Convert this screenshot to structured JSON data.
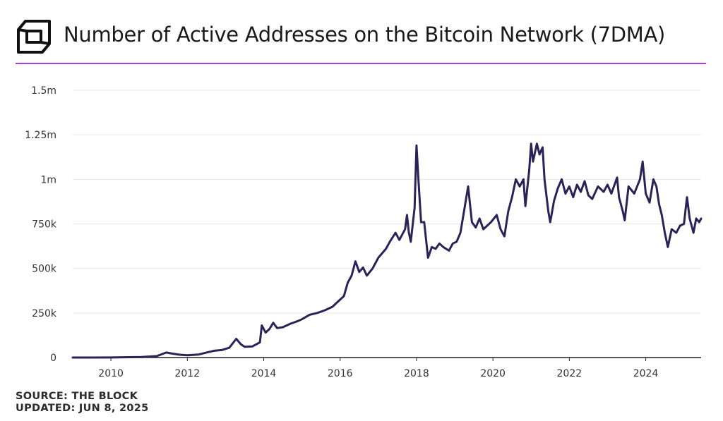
{
  "header": {
    "title": "Number of Active Addresses on the Bitcoin Network (7DMA)",
    "accent_color": "#b23cd6",
    "logo_icon": "the-block-cube-logo"
  },
  "footer": {
    "source": "SOURCE: THE BLOCK",
    "updated": "UPDATED: JUN 8, 2025"
  },
  "chart_data": {
    "type": "line",
    "title": "Number of Active Addresses on the Bitcoin Network (7DMA)",
    "xlabel": "",
    "ylabel": "",
    "ylim": [
      0,
      1500000
    ],
    "xlim": [
      2009.0,
      2025.45
    ],
    "grid": true,
    "line_color": "#2b2358",
    "y_ticks": [
      {
        "value": 0,
        "label": "0"
      },
      {
        "value": 250000,
        "label": "250k"
      },
      {
        "value": 500000,
        "label": "500k"
      },
      {
        "value": 750000,
        "label": "750k"
      },
      {
        "value": 1000000,
        "label": "1m"
      },
      {
        "value": 1250000,
        "label": "1.25m"
      },
      {
        "value": 1500000,
        "label": "1.5m"
      }
    ],
    "x_ticks": [
      {
        "value": 2010,
        "label": "2010"
      },
      {
        "value": 2012,
        "label": "2012"
      },
      {
        "value": 2014,
        "label": "2014"
      },
      {
        "value": 2016,
        "label": "2016"
      },
      {
        "value": 2018,
        "label": "2018"
      },
      {
        "value": 2020,
        "label": "2020"
      },
      {
        "value": 2022,
        "label": "2022"
      },
      {
        "value": 2024,
        "label": "2024"
      }
    ],
    "series": [
      {
        "name": "Active Addresses (7DMA)",
        "points": [
          [
            2009.0,
            0
          ],
          [
            2010.0,
            500
          ],
          [
            2010.8,
            3000
          ],
          [
            2011.2,
            8000
          ],
          [
            2011.45,
            28000
          ],
          [
            2011.6,
            22000
          ],
          [
            2011.8,
            16000
          ],
          [
            2012.0,
            13000
          ],
          [
            2012.3,
            17000
          ],
          [
            2012.5,
            28000
          ],
          [
            2012.7,
            38000
          ],
          [
            2012.9,
            42000
          ],
          [
            2013.1,
            55000
          ],
          [
            2013.28,
            105000
          ],
          [
            2013.4,
            75000
          ],
          [
            2013.5,
            60000
          ],
          [
            2013.7,
            62000
          ],
          [
            2013.9,
            85000
          ],
          [
            2013.95,
            180000
          ],
          [
            2014.05,
            140000
          ],
          [
            2014.15,
            160000
          ],
          [
            2014.25,
            195000
          ],
          [
            2014.35,
            165000
          ],
          [
            2014.5,
            170000
          ],
          [
            2014.7,
            190000
          ],
          [
            2014.9,
            205000
          ],
          [
            2015.0,
            215000
          ],
          [
            2015.2,
            240000
          ],
          [
            2015.4,
            250000
          ],
          [
            2015.6,
            265000
          ],
          [
            2015.8,
            285000
          ],
          [
            2015.9,
            305000
          ],
          [
            2016.0,
            325000
          ],
          [
            2016.1,
            345000
          ],
          [
            2016.2,
            420000
          ],
          [
            2016.3,
            460000
          ],
          [
            2016.4,
            540000
          ],
          [
            2016.5,
            480000
          ],
          [
            2016.6,
            505000
          ],
          [
            2016.7,
            460000
          ],
          [
            2016.85,
            500000
          ],
          [
            2017.0,
            560000
          ],
          [
            2017.2,
            610000
          ],
          [
            2017.3,
            650000
          ],
          [
            2017.45,
            700000
          ],
          [
            2017.55,
            660000
          ],
          [
            2017.7,
            720000
          ],
          [
            2017.75,
            800000
          ],
          [
            2017.8,
            700000
          ],
          [
            2017.85,
            650000
          ],
          [
            2017.95,
            840000
          ],
          [
            2018.0,
            1190000
          ],
          [
            2018.05,
            1000000
          ],
          [
            2018.12,
            760000
          ],
          [
            2018.2,
            760000
          ],
          [
            2018.3,
            560000
          ],
          [
            2018.4,
            620000
          ],
          [
            2018.5,
            610000
          ],
          [
            2018.6,
            640000
          ],
          [
            2018.7,
            620000
          ],
          [
            2018.85,
            600000
          ],
          [
            2018.95,
            640000
          ],
          [
            2019.05,
            650000
          ],
          [
            2019.15,
            700000
          ],
          [
            2019.25,
            830000
          ],
          [
            2019.35,
            960000
          ],
          [
            2019.45,
            760000
          ],
          [
            2019.55,
            730000
          ],
          [
            2019.65,
            780000
          ],
          [
            2019.75,
            720000
          ],
          [
            2019.85,
            740000
          ],
          [
            2019.95,
            760000
          ],
          [
            2020.1,
            800000
          ],
          [
            2020.2,
            720000
          ],
          [
            2020.3,
            680000
          ],
          [
            2020.4,
            820000
          ],
          [
            2020.5,
            900000
          ],
          [
            2020.6,
            1000000
          ],
          [
            2020.7,
            960000
          ],
          [
            2020.8,
            1000000
          ],
          [
            2020.85,
            850000
          ],
          [
            2020.95,
            1050000
          ],
          [
            2021.0,
            1200000
          ],
          [
            2021.05,
            1100000
          ],
          [
            2021.15,
            1200000
          ],
          [
            2021.22,
            1140000
          ],
          [
            2021.3,
            1180000
          ],
          [
            2021.35,
            1000000
          ],
          [
            2021.45,
            820000
          ],
          [
            2021.5,
            760000
          ],
          [
            2021.6,
            880000
          ],
          [
            2021.7,
            950000
          ],
          [
            2021.8,
            1000000
          ],
          [
            2021.9,
            920000
          ],
          [
            2022.0,
            960000
          ],
          [
            2022.1,
            900000
          ],
          [
            2022.2,
            970000
          ],
          [
            2022.3,
            930000
          ],
          [
            2022.4,
            990000
          ],
          [
            2022.5,
            910000
          ],
          [
            2022.6,
            890000
          ],
          [
            2022.75,
            960000
          ],
          [
            2022.9,
            930000
          ],
          [
            2023.0,
            970000
          ],
          [
            2023.1,
            920000
          ],
          [
            2023.25,
            1010000
          ],
          [
            2023.3,
            900000
          ],
          [
            2023.4,
            820000
          ],
          [
            2023.45,
            770000
          ],
          [
            2023.55,
            960000
          ],
          [
            2023.7,
            920000
          ],
          [
            2023.85,
            1000000
          ],
          [
            2023.92,
            1100000
          ],
          [
            2024.0,
            920000
          ],
          [
            2024.1,
            870000
          ],
          [
            2024.2,
            1000000
          ],
          [
            2024.28,
            960000
          ],
          [
            2024.35,
            860000
          ],
          [
            2024.42,
            800000
          ],
          [
            2024.5,
            700000
          ],
          [
            2024.58,
            620000
          ],
          [
            2024.68,
            720000
          ],
          [
            2024.8,
            700000
          ],
          [
            2024.9,
            740000
          ],
          [
            2025.0,
            750000
          ],
          [
            2025.08,
            900000
          ],
          [
            2025.15,
            780000
          ],
          [
            2025.25,
            700000
          ],
          [
            2025.32,
            780000
          ],
          [
            2025.4,
            760000
          ],
          [
            2025.45,
            780000
          ]
        ]
      }
    ]
  }
}
